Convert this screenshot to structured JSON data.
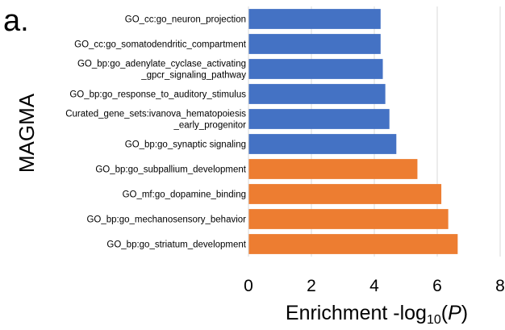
{
  "chart_data": {
    "type": "bar",
    "orientation": "horizontal",
    "panel_label": "a.",
    "ylabel": "MAGMA",
    "xlabel_prefix": "Enrichment -log",
    "xlabel_sub": "10",
    "xlabel_open": "(",
    "xlabel_var": "P",
    "xlabel_close": ")",
    "xlim": [
      0,
      8
    ],
    "xticks": [
      "0",
      "2",
      "4",
      "6",
      "8"
    ],
    "grid": true,
    "colors": {
      "blue": "#4472C4",
      "orange": "#ED7D31"
    },
    "bars": [
      {
        "lines": [
          "GO_cc:go_neuron_projection"
        ],
        "value": 4.2,
        "color": "blue"
      },
      {
        "lines": [
          "GO_cc:go_somatodendritic_compartment"
        ],
        "value": 4.2,
        "color": "blue"
      },
      {
        "lines": [
          "GO_bp:go_adenylate_cyclase_activating",
          "_gpcr_signaling_pathway"
        ],
        "value": 4.27,
        "color": "blue"
      },
      {
        "lines": [
          "GO_bp:go_response_to_auditory_stimulus"
        ],
        "value": 4.35,
        "color": "blue"
      },
      {
        "lines": [
          "Curated_gene_sets:ivanova_hematopoiesis",
          "_early_progenitor"
        ],
        "value": 4.48,
        "color": "blue"
      },
      {
        "lines": [
          "GO_bp:go_synaptic signaling"
        ],
        "value": 4.7,
        "color": "blue"
      },
      {
        "lines": [
          "GO_bp:go_subpallium_development"
        ],
        "value": 5.37,
        "color": "orange"
      },
      {
        "lines": [
          "GO_mf:go_dopamine_binding"
        ],
        "value": 6.13,
        "color": "orange"
      },
      {
        "lines": [
          "GO_bp:go_mechanosensory_behavior"
        ],
        "value": 6.35,
        "color": "orange"
      },
      {
        "lines": [
          "GO_bp:go_striatum_development"
        ],
        "value": 6.65,
        "color": "orange"
      }
    ]
  }
}
